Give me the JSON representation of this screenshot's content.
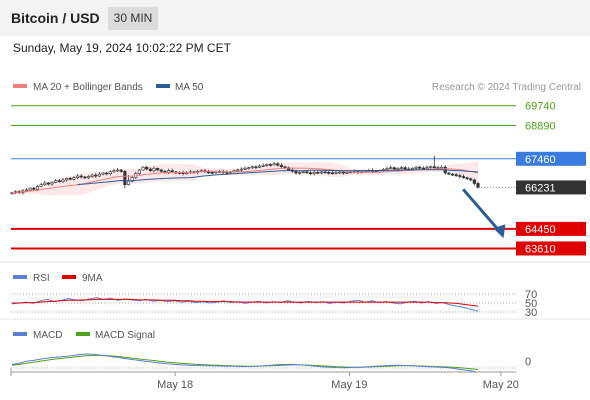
{
  "header": {
    "title": "Bitcoin / USD",
    "timeframe": "30 MIN",
    "datetime": "Sunday, May 19, 2024 10:02:22 PM CET"
  },
  "chart_data": [
    {
      "type": "candlestick",
      "legend": [
        {
          "name": "MA 20 + Bollinger Bands",
          "color": "#f08080"
        },
        {
          "name": "MA 50",
          "color": "#2d5b9a"
        }
      ],
      "credit": "Research © 2024 Trading Central",
      "ylim": [
        63200,
        70200
      ],
      "levels": [
        {
          "value": 69740,
          "label": "69740",
          "kind": "resistance",
          "color": "#4ca319"
        },
        {
          "value": 68890,
          "label": "68890",
          "kind": "resistance",
          "color": "#4ca319"
        },
        {
          "value": 67460,
          "label": "67460",
          "kind": "pivot",
          "color": "#3a7be0"
        },
        {
          "value": 66231,
          "label": "66231",
          "kind": "last-price",
          "color": "#333333"
        },
        {
          "value": 64450,
          "label": "64450",
          "kind": "target",
          "color": "#e00000"
        },
        {
          "value": 63610,
          "label": "63610",
          "kind": "target",
          "color": "#e00000"
        }
      ],
      "arrow": {
        "from_x": 0.935,
        "from_value": 66150,
        "to_x": 0.985,
        "to_value": 64050,
        "color": "#2d5b9a"
      },
      "close": [
        66000,
        66050,
        66010,
        66080,
        66120,
        66200,
        66150,
        66280,
        66350,
        66420,
        66380,
        66450,
        66520,
        66480,
        66550,
        66620,
        66580,
        66650,
        66720,
        66680,
        66640,
        66700,
        66760,
        66720,
        66800,
        66850,
        66820,
        66900,
        66950,
        66980,
        66920,
        66350,
        66500,
        66650,
        66820,
        66980,
        67100,
        67020,
        66950,
        67050,
        66980,
        66920,
        66880,
        66950,
        66900,
        66850,
        66880,
        66820,
        66860,
        66900,
        66880,
        66920,
        66950,
        66900,
        66880,
        66860,
        66900,
        66920,
        66880,
        66860,
        66900,
        66950,
        66980,
        67020,
        67050,
        67080,
        67120,
        67100,
        67150,
        67180,
        67220,
        67200,
        67250,
        67180,
        67120,
        67080,
        66980,
        66920,
        66850,
        66880,
        66900,
        66860,
        66820,
        66880,
        66850,
        66900,
        66880,
        66860,
        66830,
        66870,
        66890,
        66850,
        66880,
        66900,
        66920,
        66880,
        66900,
        66930,
        66960,
        66920,
        66900,
        66950,
        67000,
        67050,
        67080,
        67020,
        67050,
        67080,
        67020,
        67000,
        67050,
        67100,
        67060,
        67040,
        67080,
        67120,
        67080,
        67050,
        67100,
        66850,
        66800,
        66780,
        66740,
        66700,
        66650,
        66600,
        66550,
        66400,
        66231
      ]
    },
    {
      "type": "line",
      "legend": [
        {
          "name": "RSI",
          "color": "#5b7fd6"
        },
        {
          "name": "9MA",
          "color": "#e00000"
        }
      ],
      "ylim": [
        0,
        100
      ],
      "levels": [
        70,
        50,
        30
      ],
      "tick_labels": [
        "70",
        "50",
        "30"
      ],
      "series": [
        {
          "name": "RSI",
          "values": [
            48,
            50,
            52,
            49,
            55,
            58,
            53,
            56,
            60,
            57,
            55,
            59,
            62,
            58,
            61,
            56,
            59,
            57,
            55,
            58,
            54,
            56,
            53,
            55,
            52,
            54,
            51,
            53,
            50,
            52,
            55,
            51,
            53,
            49,
            52,
            54,
            50,
            53,
            51,
            55,
            52,
            50,
            54,
            51,
            53,
            49,
            52,
            50,
            54,
            56,
            52,
            55,
            51,
            53,
            50,
            48,
            52,
            54,
            50,
            53,
            49,
            51,
            46,
            43,
            40,
            36,
            32
          ]
        },
        {
          "name": "9MA",
          "values": [
            50,
            50,
            51,
            51,
            52,
            53,
            54,
            55,
            56,
            56,
            57,
            57,
            58,
            58,
            58,
            58,
            58,
            58,
            57,
            57,
            57,
            56,
            56,
            56,
            55,
            55,
            54,
            54,
            53,
            53,
            53,
            53,
            52,
            52,
            52,
            52,
            52,
            52,
            52,
            52,
            52,
            52,
            52,
            52,
            52,
            52,
            52,
            52,
            52,
            52,
            52,
            52,
            52,
            52,
            52,
            52,
            52,
            52,
            52,
            52,
            51,
            51,
            50,
            49,
            47,
            45,
            43
          ]
        }
      ]
    },
    {
      "type": "line",
      "legend": [
        {
          "name": "MACD",
          "color": "#5b7fd6"
        },
        {
          "name": "MACD Signal",
          "color": "#4ca319"
        }
      ],
      "ylim": [
        -0.7,
        1.3
      ],
      "zero_label": "0",
      "x_ticks": [
        "May 18",
        "May 19",
        "May 20"
      ],
      "x_tick_positions": [
        0.325,
        0.67,
        0.97
      ],
      "series": [
        {
          "name": "MACD",
          "values": [
            0.25,
            0.35,
            0.48,
            0.55,
            0.65,
            0.72,
            0.78,
            0.82,
            0.88,
            0.95,
            1.0,
            0.98,
            0.92,
            0.85,
            0.78,
            0.7,
            0.62,
            0.55,
            0.48,
            0.42,
            0.36,
            0.3,
            0.26,
            0.22,
            0.2,
            0.18,
            0.16,
            0.15,
            0.14,
            0.13,
            0.12,
            0.1,
            0.11,
            0.13,
            0.16,
            0.2,
            0.24,
            0.26,
            0.25,
            0.22,
            0.18,
            0.12,
            0.08,
            0.05,
            0.03,
            0.02,
            0.04,
            0.06,
            0.09,
            0.12,
            0.15,
            0.18,
            0.2,
            0.18,
            0.16,
            0.12,
            0.1,
            0.08,
            0.06,
            0.02,
            -0.05,
            -0.12,
            -0.2,
            -0.3
          ]
        },
        {
          "name": "MACD Signal",
          "values": [
            0.2,
            0.26,
            0.34,
            0.42,
            0.5,
            0.58,
            0.65,
            0.71,
            0.76,
            0.82,
            0.87,
            0.9,
            0.9,
            0.88,
            0.84,
            0.78,
            0.72,
            0.66,
            0.6,
            0.54,
            0.48,
            0.42,
            0.37,
            0.33,
            0.29,
            0.26,
            0.23,
            0.21,
            0.19,
            0.17,
            0.15,
            0.14,
            0.13,
            0.13,
            0.14,
            0.16,
            0.18,
            0.21,
            0.22,
            0.22,
            0.21,
            0.18,
            0.15,
            0.12,
            0.09,
            0.07,
            0.06,
            0.06,
            0.07,
            0.09,
            0.11,
            0.13,
            0.15,
            0.16,
            0.16,
            0.15,
            0.13,
            0.11,
            0.09,
            0.07,
            0.04,
            0.0,
            -0.05,
            -0.11
          ]
        }
      ]
    }
  ]
}
